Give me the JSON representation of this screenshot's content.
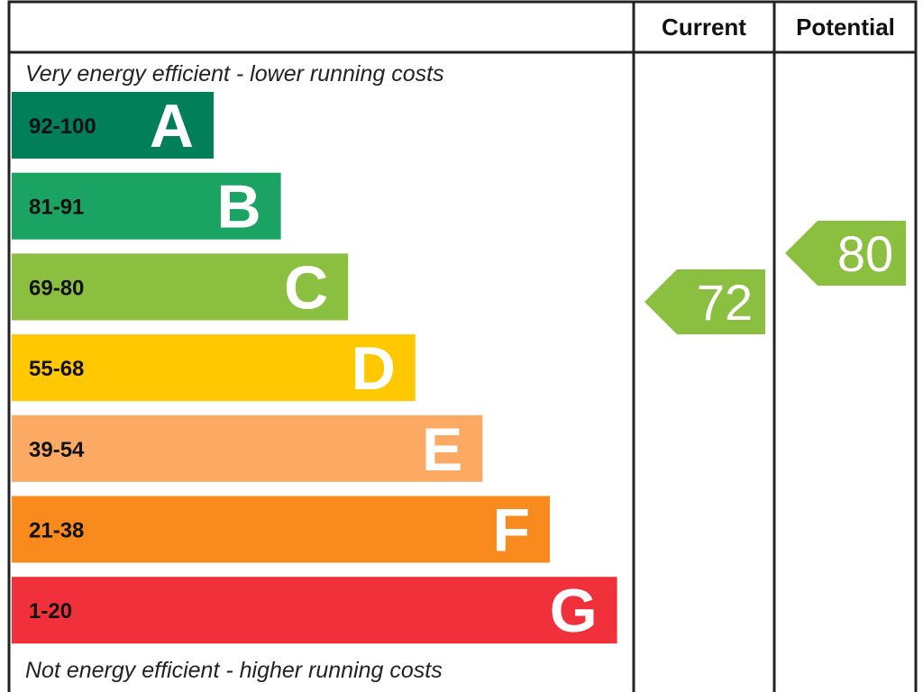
{
  "chart_data": {
    "type": "bar",
    "columns": [
      "Current",
      "Potential"
    ],
    "top_note": "Very energy efficient - lower running costs",
    "bottom_note": "Not energy efficient - higher running costs",
    "bands": [
      {
        "range": "92-100",
        "letter": "A",
        "color": "#007f58",
        "min": 92,
        "max": 100
      },
      {
        "range": "81-91",
        "letter": "B",
        "color": "#1aa362",
        "min": 81,
        "max": 91
      },
      {
        "range": "69-80",
        "letter": "C",
        "color": "#8bbf40",
        "min": 69,
        "max": 80
      },
      {
        "range": "55-68",
        "letter": "D",
        "color": "#ffc800",
        "min": 55,
        "max": 68
      },
      {
        "range": "39-54",
        "letter": "E",
        "color": "#fcaa63",
        "min": 39,
        "max": 54
      },
      {
        "range": "21-38",
        "letter": "F",
        "color": "#f88a1e",
        "min": 21,
        "max": 38
      },
      {
        "range": "1-20",
        "letter": "G",
        "color": "#f0313c",
        "min": 1,
        "max": 20
      }
    ],
    "ratings": [
      {
        "column": "Current",
        "value": 72,
        "label": "72",
        "color": "#8bbf40"
      },
      {
        "column": "Potential",
        "value": 80,
        "label": "80",
        "color": "#8bbf40"
      }
    ]
  }
}
